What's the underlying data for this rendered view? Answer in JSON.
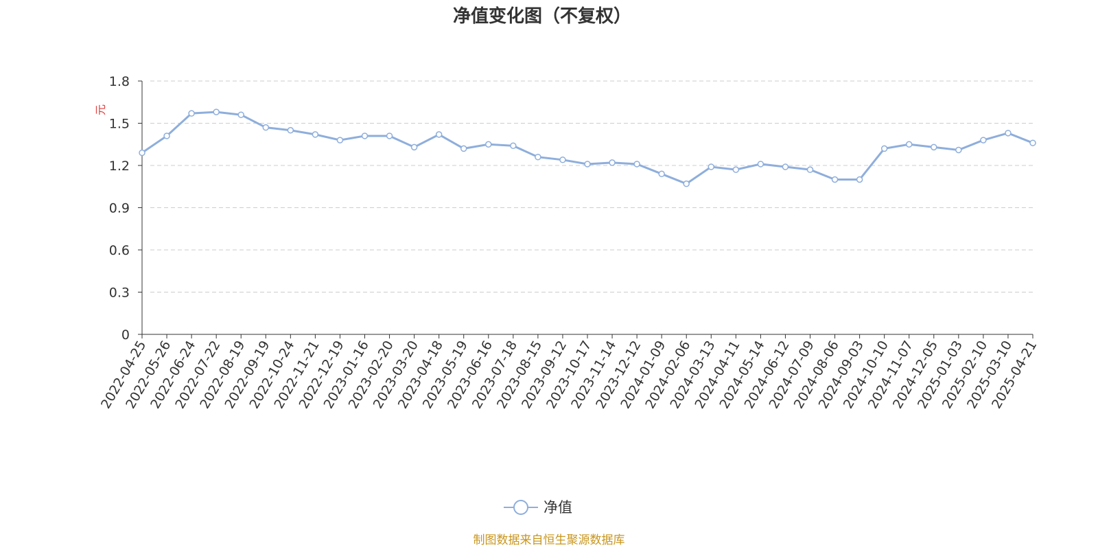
{
  "chart_data": {
    "type": "line",
    "title": "净值变化图（不复权）",
    "y_label": "元",
    "source": "制图数据来自恒生聚源数据库",
    "categories": [
      "2022-04-25",
      "2022-05-26",
      "2022-06-24",
      "2022-07-22",
      "2022-08-19",
      "2022-09-19",
      "2022-10-24",
      "2022-11-21",
      "2022-12-19",
      "2023-01-16",
      "2023-02-20",
      "2023-03-20",
      "2023-04-18",
      "2023-05-19",
      "2023-06-16",
      "2023-07-18",
      "2023-08-15",
      "2023-09-12",
      "2023-10-17",
      "2023-11-14",
      "2023-12-12",
      "2024-01-09",
      "2024-02-06",
      "2024-03-13",
      "2024-04-11",
      "2024-05-14",
      "2024-06-12",
      "2024-07-09",
      "2024-08-06",
      "2024-09-03",
      "2024-10-10",
      "2024-11-07",
      "2024-12-05",
      "2025-01-03",
      "2025-02-10",
      "2025-03-10",
      "2025-04-21"
    ],
    "series": [
      {
        "name": "净值",
        "color": "#8eaedc",
        "values": [
          1.29,
          1.41,
          1.57,
          1.58,
          1.56,
          1.47,
          1.45,
          1.42,
          1.38,
          1.41,
          1.41,
          1.33,
          1.42,
          1.32,
          1.35,
          1.34,
          1.26,
          1.24,
          1.21,
          1.22,
          1.21,
          1.14,
          1.07,
          1.19,
          1.17,
          1.21,
          1.19,
          1.17,
          1.1,
          1.1,
          1.32,
          1.35,
          1.33,
          1.31,
          1.38,
          1.43,
          1.36
        ]
      }
    ],
    "ylim": [
      0,
      1.8
    ],
    "yticks": [
      0,
      0.3,
      0.6,
      0.9,
      1.2,
      1.5,
      1.8
    ],
    "grid": true
  }
}
